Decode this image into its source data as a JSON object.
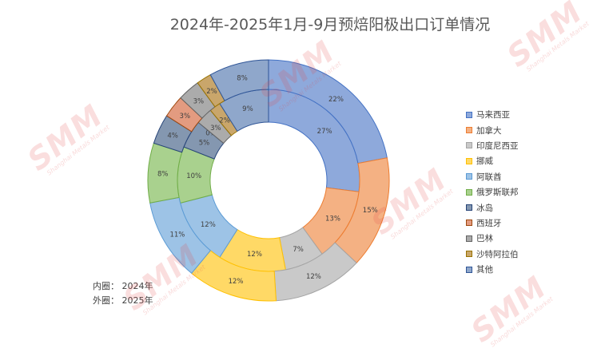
{
  "chart_data": {
    "type": "doughnut",
    "title": "2024年-2025年1月-9月预焙阳极出口订单情况",
    "categories": [
      "马来西亚",
      "加拿大",
      "印度尼西亚",
      "挪威",
      "阿联酋",
      "俄罗斯联邦",
      "冰岛",
      "西班牙",
      "巴林",
      "沙特阿拉伯",
      "其他"
    ],
    "colors": [
      "#8ea9db",
      "#f4b183",
      "#c9c9c9",
      "#ffd966",
      "#9dc3e6",
      "#a9d18e",
      "#8497b0",
      "#e39b80",
      "#ababab",
      "#c9a66b",
      "#8fa7cb"
    ],
    "border_colors": [
      "#4472c4",
      "#ed7d31",
      "#a5a5a5",
      "#ffc000",
      "#5b9bd5",
      "#70ad47",
      "#264478",
      "#9e480e",
      "#636363",
      "#997300",
      "#2f5597"
    ],
    "series": [
      {
        "name": "2024年",
        "ring": "inner",
        "values": [
          27,
          13,
          7,
          12,
          12,
          10,
          5,
          0,
          3,
          2,
          9
        ],
        "labels": [
          "27%",
          "13%",
          "7%",
          "12%",
          "12%",
          "10%",
          "5%",
          "0%",
          "3%",
          "2%",
          "9%"
        ]
      },
      {
        "name": "2025年",
        "ring": "outer",
        "values": [
          22,
          15,
          12,
          12,
          11,
          8,
          4,
          3,
          3,
          2,
          8
        ],
        "labels": [
          "22%",
          "15%",
          "12%",
          "12%",
          "11%",
          "8%",
          "4%",
          "3%",
          "3%",
          "2%",
          "8%"
        ]
      }
    ],
    "legend_position": "right"
  },
  "notes": {
    "inner": "内圈：  2024年",
    "outer": "外圈：  2025年"
  },
  "watermark": {
    "main": "SMM",
    "sub": "Shanghai Metals Market"
  }
}
